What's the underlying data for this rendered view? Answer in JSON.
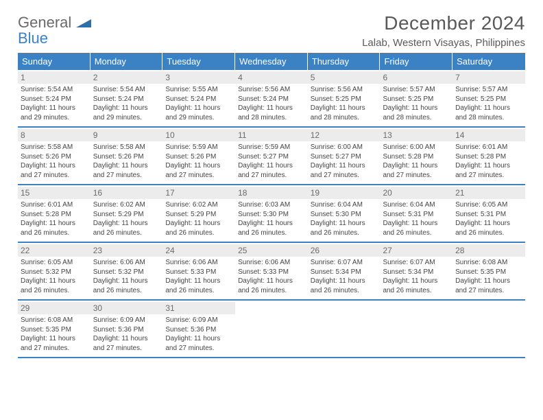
{
  "brand": {
    "word1": "General",
    "word2": "Blue"
  },
  "title": "December 2024",
  "location": "Lalab, Western Visayas, Philippines",
  "colors": {
    "header_bg": "#3b82c4",
    "header_text": "#ffffff",
    "daynum_bg": "#ececec",
    "daynum_text": "#6a6a6a",
    "body_text": "#444444",
    "title_text": "#595959"
  },
  "day_headers": [
    "Sunday",
    "Monday",
    "Tuesday",
    "Wednesday",
    "Thursday",
    "Friday",
    "Saturday"
  ],
  "weeks": [
    [
      {
        "n": "1",
        "sr": "5:54 AM",
        "ss": "5:24 PM",
        "dl": "11 hours and 29 minutes."
      },
      {
        "n": "2",
        "sr": "5:54 AM",
        "ss": "5:24 PM",
        "dl": "11 hours and 29 minutes."
      },
      {
        "n": "3",
        "sr": "5:55 AM",
        "ss": "5:24 PM",
        "dl": "11 hours and 29 minutes."
      },
      {
        "n": "4",
        "sr": "5:56 AM",
        "ss": "5:24 PM",
        "dl": "11 hours and 28 minutes."
      },
      {
        "n": "5",
        "sr": "5:56 AM",
        "ss": "5:25 PM",
        "dl": "11 hours and 28 minutes."
      },
      {
        "n": "6",
        "sr": "5:57 AM",
        "ss": "5:25 PM",
        "dl": "11 hours and 28 minutes."
      },
      {
        "n": "7",
        "sr": "5:57 AM",
        "ss": "5:25 PM",
        "dl": "11 hours and 28 minutes."
      }
    ],
    [
      {
        "n": "8",
        "sr": "5:58 AM",
        "ss": "5:26 PM",
        "dl": "11 hours and 27 minutes."
      },
      {
        "n": "9",
        "sr": "5:58 AM",
        "ss": "5:26 PM",
        "dl": "11 hours and 27 minutes."
      },
      {
        "n": "10",
        "sr": "5:59 AM",
        "ss": "5:26 PM",
        "dl": "11 hours and 27 minutes."
      },
      {
        "n": "11",
        "sr": "5:59 AM",
        "ss": "5:27 PM",
        "dl": "11 hours and 27 minutes."
      },
      {
        "n": "12",
        "sr": "6:00 AM",
        "ss": "5:27 PM",
        "dl": "11 hours and 27 minutes."
      },
      {
        "n": "13",
        "sr": "6:00 AM",
        "ss": "5:28 PM",
        "dl": "11 hours and 27 minutes."
      },
      {
        "n": "14",
        "sr": "6:01 AM",
        "ss": "5:28 PM",
        "dl": "11 hours and 27 minutes."
      }
    ],
    [
      {
        "n": "15",
        "sr": "6:01 AM",
        "ss": "5:28 PM",
        "dl": "11 hours and 26 minutes."
      },
      {
        "n": "16",
        "sr": "6:02 AM",
        "ss": "5:29 PM",
        "dl": "11 hours and 26 minutes."
      },
      {
        "n": "17",
        "sr": "6:02 AM",
        "ss": "5:29 PM",
        "dl": "11 hours and 26 minutes."
      },
      {
        "n": "18",
        "sr": "6:03 AM",
        "ss": "5:30 PM",
        "dl": "11 hours and 26 minutes."
      },
      {
        "n": "19",
        "sr": "6:04 AM",
        "ss": "5:30 PM",
        "dl": "11 hours and 26 minutes."
      },
      {
        "n": "20",
        "sr": "6:04 AM",
        "ss": "5:31 PM",
        "dl": "11 hours and 26 minutes."
      },
      {
        "n": "21",
        "sr": "6:05 AM",
        "ss": "5:31 PM",
        "dl": "11 hours and 26 minutes."
      }
    ],
    [
      {
        "n": "22",
        "sr": "6:05 AM",
        "ss": "5:32 PM",
        "dl": "11 hours and 26 minutes."
      },
      {
        "n": "23",
        "sr": "6:06 AM",
        "ss": "5:32 PM",
        "dl": "11 hours and 26 minutes."
      },
      {
        "n": "24",
        "sr": "6:06 AM",
        "ss": "5:33 PM",
        "dl": "11 hours and 26 minutes."
      },
      {
        "n": "25",
        "sr": "6:06 AM",
        "ss": "5:33 PM",
        "dl": "11 hours and 26 minutes."
      },
      {
        "n": "26",
        "sr": "6:07 AM",
        "ss": "5:34 PM",
        "dl": "11 hours and 26 minutes."
      },
      {
        "n": "27",
        "sr": "6:07 AM",
        "ss": "5:34 PM",
        "dl": "11 hours and 26 minutes."
      },
      {
        "n": "28",
        "sr": "6:08 AM",
        "ss": "5:35 PM",
        "dl": "11 hours and 27 minutes."
      }
    ],
    [
      {
        "n": "29",
        "sr": "6:08 AM",
        "ss": "5:35 PM",
        "dl": "11 hours and 27 minutes."
      },
      {
        "n": "30",
        "sr": "6:09 AM",
        "ss": "5:36 PM",
        "dl": "11 hours and 27 minutes."
      },
      {
        "n": "31",
        "sr": "6:09 AM",
        "ss": "5:36 PM",
        "dl": "11 hours and 27 minutes."
      },
      null,
      null,
      null,
      null
    ]
  ],
  "labels": {
    "sunrise": "Sunrise:",
    "sunset": "Sunset:",
    "daylight": "Daylight:"
  }
}
